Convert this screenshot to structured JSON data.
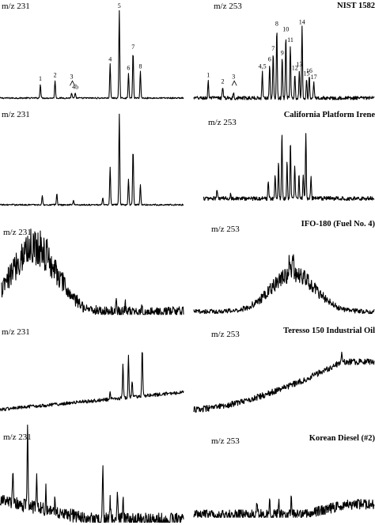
{
  "chart_data": [
    {
      "type": "line",
      "axis_label": "m/z 231",
      "sample": "",
      "peak_labels": [
        "1",
        "2",
        "3",
        "4b",
        "4",
        "5",
        "6",
        "7",
        "8"
      ],
      "peaks": [
        {
          "x": 0.22,
          "h": 0.16,
          "label": "1"
        },
        {
          "x": 0.3,
          "h": 0.2,
          "label": "2"
        },
        {
          "x": 0.39,
          "h": 0.06,
          "label": "3"
        },
        {
          "x": 0.41,
          "h": 0.05,
          "label": "4b"
        },
        {
          "x": 0.6,
          "h": 0.38,
          "label": "4"
        },
        {
          "x": 0.65,
          "h": 0.98,
          "label": "5"
        },
        {
          "x": 0.7,
          "h": 0.28,
          "label": "6"
        },
        {
          "x": 0.725,
          "h": 0.52,
          "label": "7"
        },
        {
          "x": 0.765,
          "h": 0.3,
          "label": "8"
        }
      ],
      "noise": 0.008,
      "baseline": "flat"
    },
    {
      "type": "line",
      "axis_label": "m/z 253",
      "sample": "NIST 1582",
      "peak_labels": [
        "1",
        "2",
        "3",
        "4,5",
        "6",
        "7",
        "8",
        "9",
        "10",
        "11",
        "12",
        "13",
        "14",
        "15",
        "16",
        "17"
      ],
      "peaks": [
        {
          "x": 0.08,
          "h": 0.2,
          "label": "1"
        },
        {
          "x": 0.16,
          "h": 0.13,
          "label": "2"
        },
        {
          "x": 0.22,
          "h": 0.06,
          "label": "3"
        },
        {
          "x": 0.38,
          "h": 0.3,
          "label": "4,5"
        },
        {
          "x": 0.42,
          "h": 0.38,
          "label": "6"
        },
        {
          "x": 0.44,
          "h": 0.5,
          "label": "7"
        },
        {
          "x": 0.46,
          "h": 0.78,
          "label": "8"
        },
        {
          "x": 0.49,
          "h": 0.45,
          "label": "9"
        },
        {
          "x": 0.51,
          "h": 0.72,
          "label": "10"
        },
        {
          "x": 0.535,
          "h": 0.6,
          "label": "11"
        },
        {
          "x": 0.56,
          "h": 0.28,
          "label": "12"
        },
        {
          "x": 0.585,
          "h": 0.32,
          "label": "13"
        },
        {
          "x": 0.6,
          "h": 0.8,
          "label": "14"
        },
        {
          "x": 0.625,
          "h": 0.22,
          "label": "15"
        },
        {
          "x": 0.64,
          "h": 0.25,
          "label": "16"
        },
        {
          "x": 0.665,
          "h": 0.18,
          "label": "17"
        }
      ],
      "noise": 0.02,
      "baseline": "flat"
    },
    {
      "type": "line",
      "axis_label": "m/z 231",
      "sample": "",
      "peaks": [
        {
          "x": 0.23,
          "h": 0.1
        },
        {
          "x": 0.31,
          "h": 0.12
        },
        {
          "x": 0.4,
          "h": 0.05
        },
        {
          "x": 0.56,
          "h": 0.07
        },
        {
          "x": 0.6,
          "h": 0.4
        },
        {
          "x": 0.65,
          "h": 0.98
        },
        {
          "x": 0.7,
          "h": 0.28
        },
        {
          "x": 0.725,
          "h": 0.6
        },
        {
          "x": 0.765,
          "h": 0.22
        }
      ],
      "noise": 0.008,
      "baseline": "flat"
    },
    {
      "type": "line",
      "axis_label": "m/z 253",
      "sample": "California Platform Irene",
      "peaks": [
        {
          "x": 0.08,
          "h": 0.1
        },
        {
          "x": 0.16,
          "h": 0.06
        },
        {
          "x": 0.38,
          "h": 0.22
        },
        {
          "x": 0.42,
          "h": 0.28
        },
        {
          "x": 0.44,
          "h": 0.45
        },
        {
          "x": 0.46,
          "h": 0.8
        },
        {
          "x": 0.49,
          "h": 0.45
        },
        {
          "x": 0.51,
          "h": 0.7
        },
        {
          "x": 0.535,
          "h": 0.4
        },
        {
          "x": 0.56,
          "h": 0.28
        },
        {
          "x": 0.585,
          "h": 0.3
        },
        {
          "x": 0.6,
          "h": 0.78
        },
        {
          "x": 0.63,
          "h": 0.25
        }
      ],
      "noise": 0.025,
      "baseline": "flat"
    },
    {
      "type": "line",
      "axis_label": "m/z 231",
      "sample": "",
      "peaks": [
        {
          "x": 0.63,
          "h": 0.1
        },
        {
          "x": 0.68,
          "h": 0.08
        },
        {
          "x": 0.72,
          "h": 0.06
        },
        {
          "x": 0.77,
          "h": 0.04
        }
      ],
      "hump": {
        "center": 0.18,
        "width": 0.12,
        "height": 0.65
      },
      "noise": 0.12,
      "baseline": "flat"
    },
    {
      "type": "line",
      "axis_label": "m/z 253",
      "sample": "IFO-180 (Fuel No. 4)",
      "peaks": [
        {
          "x": 0.55,
          "h": 0.3
        },
        {
          "x": 0.53,
          "h": 0.18
        }
      ],
      "hump": {
        "center": 0.55,
        "width": 0.12,
        "height": 0.55
      },
      "noise": 0.08,
      "baseline": "flat"
    },
    {
      "type": "line",
      "axis_label": "m/z 231",
      "sample": "",
      "peaks": [
        {
          "x": 0.6,
          "h": 0.1
        },
        {
          "x": 0.67,
          "h": 0.4
        },
        {
          "x": 0.7,
          "h": 0.48
        },
        {
          "x": 0.72,
          "h": 0.18
        },
        {
          "x": 0.775,
          "h": 0.55
        }
      ],
      "ramp": {
        "start": 0.0,
        "end": 1.0,
        "rise": 0.2
      },
      "noise": 0.02,
      "baseline": "rising"
    },
    {
      "type": "line",
      "axis_label": "m/z 253",
      "sample": "Teresso 150 Industrial Oil",
      "peaks": [
        {
          "x": 0.82,
          "h": 0.12
        }
      ],
      "ramp": {
        "start": 0.0,
        "end": 0.82,
        "rise": 0.55
      },
      "noise": 0.035,
      "baseline": "rising"
    },
    {
      "type": "line",
      "axis_label": "m/z 231",
      "sample": "",
      "peaks": [
        {
          "x": 0.07,
          "h": 0.32
        },
        {
          "x": 0.15,
          "h": 0.85
        },
        {
          "x": 0.2,
          "h": 0.4
        },
        {
          "x": 0.25,
          "h": 0.22
        },
        {
          "x": 0.3,
          "h": 0.15
        },
        {
          "x": 0.56,
          "h": 0.55
        },
        {
          "x": 0.6,
          "h": 0.2
        },
        {
          "x": 0.64,
          "h": 0.32
        },
        {
          "x": 0.67,
          "h": 0.22
        }
      ],
      "decay": {
        "start": 0.0,
        "end": 0.5,
        "drop": 0.2
      },
      "noise": 0.07,
      "baseline": "falling"
    },
    {
      "type": "line",
      "axis_label": "m/z 253",
      "sample": "Korean Diesel (#2)",
      "peaks": [
        {
          "x": 0.35,
          "h": 0.14
        },
        {
          "x": 0.42,
          "h": 0.18
        },
        {
          "x": 0.47,
          "h": 0.16
        },
        {
          "x": 0.54,
          "h": 0.18
        }
      ],
      "ramp": {
        "start": 0.6,
        "end": 0.85,
        "rise": 0.12
      },
      "noise": 0.06,
      "baseline": "flat"
    }
  ]
}
